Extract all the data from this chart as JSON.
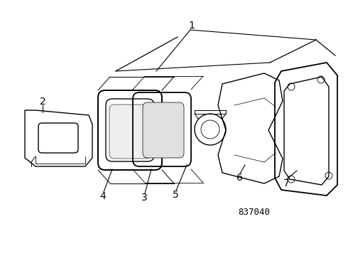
{
  "background_color": "#ffffff",
  "line_color": "#000000",
  "diagram_code": "837040",
  "figsize": [
    4.9,
    3.6
  ],
  "dpi": 100
}
